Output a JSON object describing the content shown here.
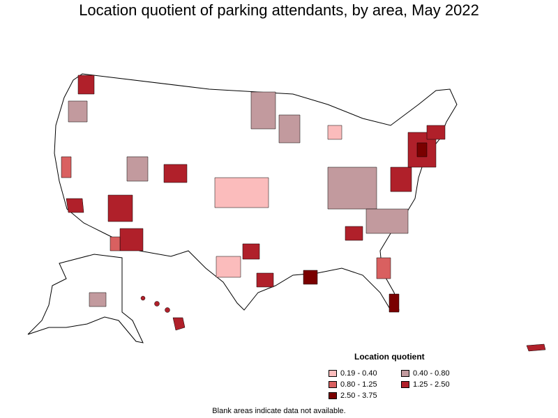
{
  "title": "Location quotient of parking attendants, by area, May 2022",
  "legend": {
    "title": "Location quotient",
    "items": [
      {
        "label": "0.19 - 0.40",
        "color": "#fbbcbc"
      },
      {
        "label": "0.80 - 1.25",
        "color": "#d96060"
      },
      {
        "label": "2.50 - 3.75",
        "color": "#7a0000"
      },
      {
        "label": "0.40 - 0.80",
        "color": "#c29a9e"
      },
      {
        "label": "1.25 - 2.50",
        "color": "#b0202a"
      }
    ]
  },
  "footnote": "Blank areas indicate data not available."
}
